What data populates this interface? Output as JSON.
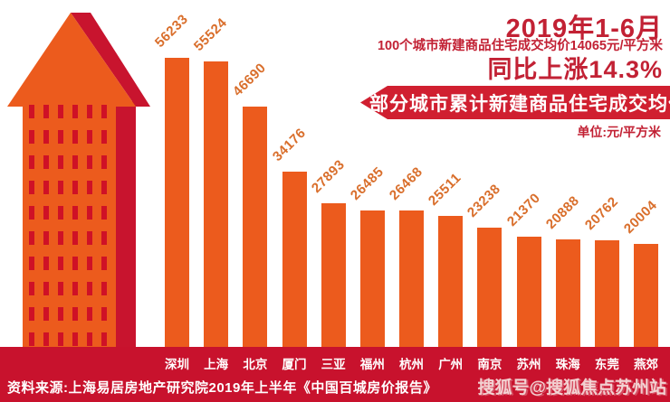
{
  "header": {
    "period": "2019年1-6月",
    "subtitle": "100个城市新建商品住宅成交均价14065元/平方米",
    "yoy": "同比上涨14.3%"
  },
  "banner": {
    "title": "部分城市累计新建商品住宅成交均价",
    "unit": "单位:元/平方米"
  },
  "chart_data": {
    "type": "bar",
    "title": "部分城市累计新建商品住宅成交均价",
    "ylabel": "元/平方米",
    "xlabel": "",
    "ylim": [
      0,
      56233
    ],
    "grid": false,
    "legend": "none",
    "categories": [
      "深圳",
      "上海",
      "北京",
      "厦门",
      "三亚",
      "福州",
      "杭州",
      "广州",
      "南京",
      "苏州",
      "珠海",
      "东莞",
      "燕郊"
    ],
    "values": [
      56233,
      55524,
      46690,
      34176,
      27893,
      26485,
      26468,
      25511,
      23238,
      21370,
      20888,
      20762,
      20004
    ]
  },
  "footer": {
    "source": "资料来源:上海易居房地产研究院2019年上半年《中国百城房价报告》",
    "watermark": "搜狐号@搜狐焦点苏州站"
  },
  "colors": {
    "bar": "#EC5B1D",
    "bar_value_label": "#D96E2B",
    "building_orange": "#EC5B1D",
    "building_shadow_red": "#C8142E",
    "window_red": "#CF1126",
    "strip_red": "#C8122D",
    "banner_red": "#D01F30",
    "header_text": "#C22134",
    "label_text": "#FFFFFF"
  }
}
